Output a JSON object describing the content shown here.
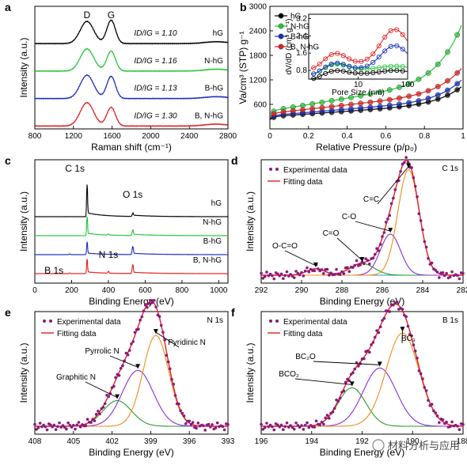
{
  "chart_data": [
    {
      "id": "a",
      "type": "line",
      "panel_label": "a",
      "xlabel": "Raman shift (cm⁻¹)",
      "ylabel": "Intensity (a.u.)",
      "xlim": [
        800,
        2800
      ],
      "xticks": [
        800,
        1200,
        1600,
        2000,
        2400,
        2800
      ],
      "peak_labels": [
        {
          "text": "D",
          "x": 1340
        },
        {
          "text": "G",
          "x": 1590
        }
      ],
      "series": [
        {
          "name": "hG",
          "ratio_label": "ID/IG = 1.10",
          "color": "#000000",
          "peaks": [
            {
              "x": 1340,
              "w": 70,
              "h": 0.95
            },
            {
              "x": 1590,
              "w": 45,
              "h": 1.0
            },
            {
              "x": 2680,
              "w": 120,
              "h": 0.08
            }
          ]
        },
        {
          "name": "N-hG",
          "ratio_label": "ID/IG = 1.16",
          "color": "#27c63a",
          "peaks": [
            {
              "x": 1340,
              "w": 70,
              "h": 0.95
            },
            {
              "x": 1590,
              "w": 45,
              "h": 0.85
            },
            {
              "x": 2680,
              "w": 120,
              "h": 0.08
            }
          ]
        },
        {
          "name": "B-hG",
          "ratio_label": "ID/IG = 1.13",
          "color": "#1a2fbf",
          "peaks": [
            {
              "x": 1340,
              "w": 70,
              "h": 1.0
            },
            {
              "x": 1590,
              "w": 45,
              "h": 0.95
            },
            {
              "x": 2680,
              "w": 120,
              "h": 0.08
            }
          ]
        },
        {
          "name": "B, N-hG",
          "ratio_label": "ID/IG = 1.30",
          "color": "#e02020",
          "peaks": [
            {
              "x": 1340,
              "w": 70,
              "h": 1.0
            },
            {
              "x": 1590,
              "w": 45,
              "h": 0.8
            },
            {
              "x": 2680,
              "w": 120,
              "h": 0.08
            }
          ]
        }
      ]
    },
    {
      "id": "b",
      "type": "line",
      "panel_label": "b",
      "xlabel": "Relative Pressure (p/p₀)",
      "ylabel": "Va/cm³ (STP) g⁻¹",
      "xlim": [
        0.0,
        1.0
      ],
      "ylim": [
        0,
        3000
      ],
      "xticks": [
        0.0,
        0.2,
        0.4,
        0.6,
        0.8,
        1.0
      ],
      "yticks": [
        600,
        1200,
        1800,
        2400,
        3000
      ],
      "legend": [
        "hG",
        "N-hG",
        "B-hG",
        "B, N-hG"
      ],
      "legend_position": "top-left",
      "series": [
        {
          "name": "hG",
          "color": "#000000",
          "base": 220,
          "slope": 330,
          "end": 980
        },
        {
          "name": "N-hG",
          "color": "#27c63a",
          "base": 360,
          "slope": 780,
          "end": 2550
        },
        {
          "name": "B-hG",
          "color": "#1a2fbf",
          "base": 250,
          "slope": 380,
          "end": 1150
        },
        {
          "name": "B, N-hG",
          "color": "#e02020",
          "base": 300,
          "slope": 520,
          "end": 1440
        }
      ],
      "inset": {
        "xlabel": "Pore Size (nm)",
        "ylabel": "dV/dD (cm³ g⁻¹)",
        "xscale": "log",
        "xlim": [
          1,
          100
        ],
        "ylim": [
          0.4,
          3.4
        ],
        "xticks": [
          10,
          100
        ],
        "yticks": [
          0.8,
          1.6,
          2.4,
          3.2
        ],
        "series": [
          {
            "name": "hG",
            "color": "#000000",
            "level": 0.65,
            "bump": 0.15,
            "hump": 0.15
          },
          {
            "name": "N-hG",
            "color": "#27c63a",
            "level": 0.85,
            "bump": 0.25,
            "hump": 0.15
          },
          {
            "name": "B-hG",
            "color": "#1a2fbf",
            "level": 0.85,
            "bump": 0.3,
            "hump": 1.1
          },
          {
            "name": "B, N-hG",
            "color": "#e02020",
            "level": 1.1,
            "bump": 0.5,
            "hump": 1.6
          }
        ]
      }
    },
    {
      "id": "c",
      "type": "line",
      "panel_label": "c",
      "xlabel": "Binding Energy (eV)",
      "ylabel": "Intensity (a.u.)",
      "xlim": [
        0,
        1050
      ],
      "xticks": [
        0,
        200,
        400,
        600,
        800,
        1000
      ],
      "peak_labels": [
        {
          "text": "C 1s",
          "x": 284
        },
        {
          "text": "O 1s",
          "x": 532
        },
        {
          "text": "N 1s",
          "x": 400
        },
        {
          "text": "B 1s",
          "x": 190
        }
      ],
      "series": [
        {
          "name": "hG",
          "color": "#000000",
          "C": 2.0,
          "O": 0.18,
          "N": 0.0,
          "B": 0.0
        },
        {
          "name": "N-hG",
          "color": "#27c63a",
          "C": 1.2,
          "O": 0.35,
          "N": 0.08,
          "B": 0.0
        },
        {
          "name": "B-hG",
          "color": "#1a2fbf",
          "C": 0.8,
          "O": 0.5,
          "N": 0.0,
          "B": 0.05
        },
        {
          "name": "B, N-hG",
          "color": "#e02020",
          "C": 0.9,
          "O": 0.55,
          "N": 0.12,
          "B": 0.04
        }
      ]
    },
    {
      "id": "d",
      "type": "line",
      "panel_label": "d",
      "core_level": "C 1s",
      "xlabel": "Binding Energy (eV)",
      "ylabel": "Intensity (a.u.)",
      "xlim": [
        292,
        282
      ],
      "xticks": [
        292,
        290,
        288,
        286,
        284,
        282
      ],
      "legend": [
        "Experimental data",
        "Fitting data"
      ],
      "legend_position": "top-left",
      "components": [
        {
          "name": "O-C=O",
          "center": 289.3,
          "width": 0.9,
          "height": 0.055,
          "color": "#1f9fb5"
        },
        {
          "name": "C=O",
          "center": 287.0,
          "width": 1.2,
          "height": 0.1,
          "color": "#2a9a2a"
        },
        {
          "name": "C-O",
          "center": 285.6,
          "width": 1.0,
          "height": 0.35,
          "color": "#8a2be2"
        },
        {
          "name": "C=C",
          "center": 284.7,
          "width": 1.05,
          "height": 0.9,
          "color": "#f28c1a"
        }
      ]
    },
    {
      "id": "e",
      "type": "line",
      "panel_label": "e",
      "core_level": "N 1s",
      "xlabel": "Binding Energy (eV)",
      "ylabel": "Intensity (a.u.)",
      "xlim": [
        408,
        393
      ],
      "xticks": [
        408,
        405,
        402,
        399,
        396,
        393
      ],
      "legend": [
        "Experimental data",
        "Fitting data"
      ],
      "legend_position": "top-left",
      "components": [
        {
          "name": "Graphitic N",
          "center": 401.6,
          "width": 2.2,
          "height": 0.22,
          "color": "#2a9a2a"
        },
        {
          "name": "Pyrrolic N",
          "center": 400.0,
          "width": 2.4,
          "height": 0.48,
          "color": "#8a2be2"
        },
        {
          "name": "Pyridinic N",
          "center": 398.6,
          "width": 2.0,
          "height": 0.78,
          "color": "#f28c1a"
        }
      ]
    },
    {
      "id": "f",
      "type": "line",
      "panel_label": "f",
      "core_level": "B 1s",
      "xlabel": "Binding Energy (eV)",
      "ylabel": "Intensity (a.u.)",
      "xlim": [
        196,
        188
      ],
      "xticks": [
        196,
        194,
        192,
        190,
        188
      ],
      "legend": [
        "Experimental data",
        "Fitting data"
      ],
      "legend_position": "top-left",
      "components": [
        {
          "name": "BCO₂",
          "center": 192.4,
          "width": 1.1,
          "height": 0.33,
          "color": "#2a9a2a"
        },
        {
          "name": "BC₂O",
          "center": 191.3,
          "width": 1.3,
          "height": 0.5,
          "color": "#8a2be2"
        },
        {
          "name": "BC₃",
          "center": 190.4,
          "width": 1.3,
          "height": 0.8,
          "color": "#f28c1a"
        }
      ]
    }
  ],
  "watermark": "材料分析与应用"
}
